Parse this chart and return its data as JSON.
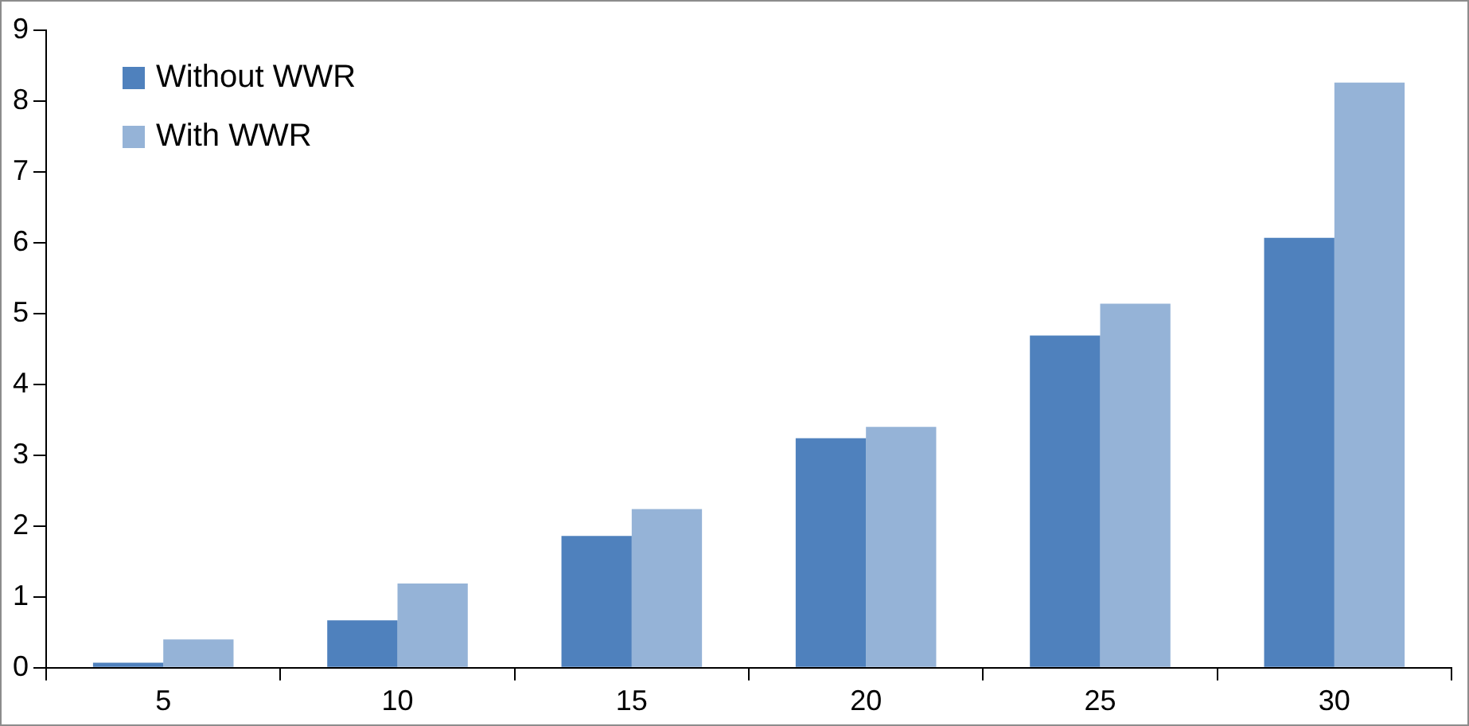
{
  "chart_data": {
    "type": "bar",
    "categories": [
      "5",
      "10",
      "15",
      "20",
      "25",
      "30"
    ],
    "series": [
      {
        "name": "Without WWR",
        "color": "#4f81bd",
        "values": [
          0.07,
          0.67,
          1.86,
          3.24,
          4.69,
          6.07
        ]
      },
      {
        "name": "With WWR",
        "color": "#95b3d7",
        "values": [
          0.4,
          1.19,
          2.24,
          3.4,
          5.14,
          8.26
        ]
      }
    ],
    "ylim": [
      0,
      9
    ],
    "yticks": [
      0,
      1,
      2,
      3,
      4,
      5,
      6,
      7,
      8,
      9
    ],
    "grid": false,
    "legend": "top left"
  }
}
